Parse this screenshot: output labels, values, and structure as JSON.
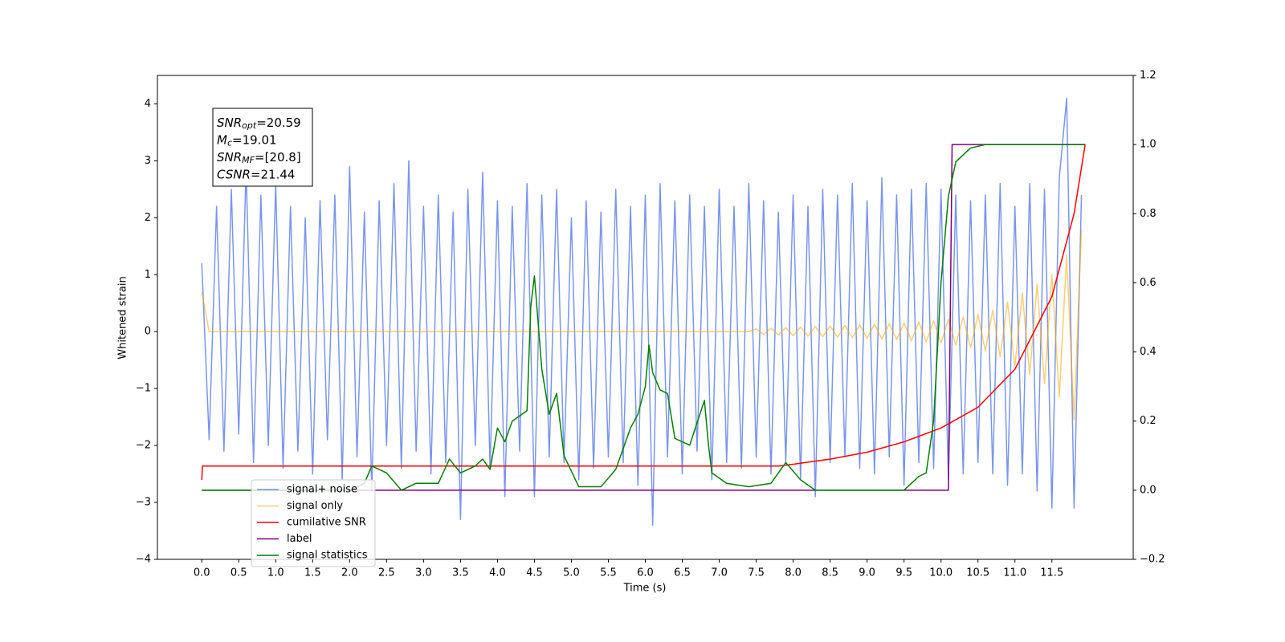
{
  "chart_data": {
    "type": "line",
    "xlabel": "Time (s)",
    "ylabel": "Whitened strain",
    "xlim": [
      -0.6,
      12.6
    ],
    "ylim": [
      -4,
      4.5
    ],
    "y2lim": [
      -0.2,
      1.2
    ],
    "xticks": [
      {
        "value": 0,
        "label": "0.0"
      },
      0.5,
      {
        "value": 1,
        "label": "1.0"
      },
      1.5,
      {
        "value": 2,
        "label": "2.0"
      },
      2.5,
      {
        "value": 3,
        "label": "3.0"
      },
      3.5,
      {
        "value": 4,
        "label": "4.0"
      },
      4.5,
      {
        "value": 5,
        "label": "5.0"
      },
      5.5,
      {
        "value": 6,
        "label": "6.0"
      },
      6.5,
      {
        "value": 7,
        "label": "7.0"
      },
      7.5,
      {
        "value": 8,
        "label": "8.0"
      },
      8.5,
      {
        "value": 9,
        "label": "9.0"
      },
      9.5,
      {
        "value": 10,
        "label": "10.0"
      },
      10.5,
      {
        "value": 11,
        "label": "11.0"
      },
      11.5
    ],
    "yticks": [
      {
        "value": -4,
        "label": "−4"
      },
      {
        "value": -3,
        "label": "−3"
      },
      {
        "value": -2,
        "label": "−2"
      },
      {
        "value": -1,
        "label": "−1"
      },
      0,
      1,
      2,
      3,
      4
    ],
    "y2ticks": [
      {
        "value": -0.2,
        "label": "−0.2"
      },
      {
        "value": 0,
        "label": "0.0"
      },
      0.2,
      0.4,
      0.6,
      0.8,
      {
        "value": 1,
        "label": "1.0"
      },
      1.2
    ],
    "annotation": [
      {
        "main": "SNR",
        "sub": "opt",
        "value": "=20.59"
      },
      {
        "main": "M",
        "sub": "c",
        "value": "=19.01"
      },
      {
        "main": "SNR",
        "sub": "MF",
        "value": "=[20.8]"
      },
      {
        "main": "CSNR",
        "value": "=21.44"
      }
    ],
    "x": [
      0.0,
      0.1,
      0.2,
      0.3,
      0.4,
      0.5,
      0.6,
      0.7,
      0.8,
      0.9,
      1.0,
      1.1,
      1.2,
      1.3,
      1.4,
      1.5,
      1.6,
      1.7,
      1.8,
      1.9,
      2.0,
      2.1,
      2.2,
      2.3,
      2.4,
      2.5,
      2.6,
      2.7,
      2.8,
      2.9,
      3.0,
      3.1,
      3.2,
      3.3,
      3.4,
      3.5,
      3.6,
      3.7,
      3.8,
      3.9,
      4.0,
      4.1,
      4.2,
      4.3,
      4.4,
      4.5,
      4.6,
      4.7,
      4.8,
      4.9,
      5.0,
      5.1,
      5.2,
      5.3,
      5.4,
      5.5,
      5.6,
      5.7,
      5.8,
      5.9,
      6.0,
      6.1,
      6.2,
      6.3,
      6.4,
      6.5,
      6.6,
      6.7,
      6.8,
      6.9,
      7.0,
      7.1,
      7.2,
      7.3,
      7.4,
      7.5,
      7.6,
      7.7,
      7.8,
      7.9,
      8.0,
      8.1,
      8.2,
      8.3,
      8.4,
      8.5,
      8.6,
      8.7,
      8.8,
      8.9,
      9.0,
      9.1,
      9.2,
      9.3,
      9.4,
      9.5,
      9.6,
      9.7,
      9.8,
      9.9,
      10.0,
      10.1,
      10.2,
      10.3,
      10.4,
      10.5,
      10.6,
      10.7,
      10.8,
      10.9,
      11.0,
      11.1,
      11.2,
      11.3,
      11.4,
      11.5,
      11.6,
      11.7,
      11.8,
      11.9
    ],
    "series": [
      {
        "name": "signal+ noise",
        "color": "#4169e1",
        "values": [
          1.2,
          -1.9,
          2.2,
          -2.1,
          2.5,
          -1.8,
          2.9,
          -2.3,
          2.4,
          -2.0,
          2.6,
          -2.4,
          2.2,
          -2.1,
          2.0,
          -2.5,
          2.3,
          -1.9,
          2.4,
          -2.6,
          2.9,
          -2.2,
          2.1,
          -2.8,
          2.3,
          -2.0,
          2.6,
          -2.4,
          3.0,
          -2.1,
          2.2,
          -2.5,
          2.4,
          -2.3,
          2.1,
          -3.3,
          2.5,
          -2.0,
          2.8,
          -2.4,
          2.3,
          -2.9,
          2.2,
          -2.1,
          2.6,
          -2.9,
          2.4,
          -2.2,
          2.5,
          -2.3,
          2.0,
          -2.6,
          2.3,
          -2.4,
          2.1,
          -2.2,
          2.5,
          -2.3,
          2.2,
          -2.7,
          2.4,
          -3.4,
          2.6,
          -2.2,
          2.3,
          -2.5,
          2.4,
          -2.1,
          2.2,
          -2.6,
          2.5,
          -2.3,
          2.2,
          -2.4,
          2.6,
          -2.2,
          2.3,
          -2.5,
          2.1,
          -2.3,
          2.4,
          -2.6,
          2.2,
          -2.9,
          2.5,
          -2.3,
          2.4,
          -2.2,
          2.6,
          -2.4,
          2.3,
          -2.5,
          2.7,
          -2.2,
          2.4,
          -2.7,
          2.5,
          -2.3,
          2.6,
          -2.4,
          2.5,
          -2.6,
          2.4,
          -2.5,
          2.3,
          -2.3,
          2.4,
          -2.5,
          2.6,
          -2.7,
          2.2,
          -2.5,
          2.6,
          -2.8,
          2.5,
          -3.1,
          2.7,
          4.1,
          -3.1,
          2.4
        ]
      },
      {
        "name": "signal only",
        "color": "#ffa500",
        "values": [
          0.7,
          0,
          0,
          0,
          0,
          0,
          0,
          0,
          0,
          0,
          0,
          0,
          0,
          0,
          0,
          0,
          0,
          0,
          0,
          0,
          0,
          0,
          0,
          0,
          0,
          0,
          0,
          0,
          0,
          0,
          0,
          0,
          0,
          0,
          0,
          0,
          0,
          0,
          0,
          0,
          0,
          0,
          0,
          0,
          0,
          0,
          0,
          0,
          0,
          0,
          0,
          0,
          0,
          0,
          0,
          0,
          0,
          0,
          0,
          0,
          0,
          0,
          0,
          0,
          0,
          0,
          0,
          0,
          0,
          0,
          0,
          0,
          0,
          0,
          0,
          0.05,
          -0.05,
          0.06,
          -0.06,
          0.07,
          -0.07,
          0.08,
          -0.08,
          0.09,
          -0.09,
          0.1,
          -0.1,
          0.11,
          -0.11,
          0.12,
          -0.12,
          0.13,
          -0.13,
          0.14,
          -0.14,
          0.15,
          -0.16,
          0.17,
          -0.18,
          0.19,
          -0.2,
          0.22,
          -0.24,
          0.26,
          -0.28,
          0.3,
          -0.34,
          0.38,
          -0.44,
          0.52,
          -0.6,
          0.68,
          -0.76,
          0.84,
          -0.92,
          1.0,
          -1.15,
          1.35,
          -1.55,
          1.8
        ]
      },
      {
        "name": "cumilative SNR",
        "color": "#ff0000",
        "axis": "y2",
        "x": [
          0,
          0.01,
          7.8,
          8.0,
          8.5,
          9.0,
          9.5,
          10.0,
          10.5,
          11.0,
          11.5,
          11.8,
          11.95
        ],
        "values": [
          0.03,
          0.07,
          0.07,
          0.075,
          0.09,
          0.11,
          0.14,
          0.18,
          0.24,
          0.35,
          0.56,
          0.8,
          1.0
        ]
      },
      {
        "name": "label",
        "color": "#800080",
        "axis": "y2",
        "x": [
          0,
          10.1,
          10.15,
          11.95
        ],
        "values": [
          0,
          0,
          1,
          1
        ]
      },
      {
        "name": "signal statistics",
        "color": "#008000",
        "axis": "y2",
        "x": [
          0,
          2.0,
          2.2,
          2.3,
          2.5,
          2.7,
          2.9,
          3.2,
          3.35,
          3.5,
          3.7,
          3.8,
          3.9,
          4.0,
          4.1,
          4.2,
          4.4,
          4.45,
          4.5,
          4.6,
          4.7,
          4.8,
          4.9,
          5.1,
          5.4,
          5.6,
          5.8,
          5.9,
          6.0,
          6.05,
          6.1,
          6.2,
          6.3,
          6.4,
          6.6,
          6.8,
          6.85,
          6.9,
          7.1,
          7.4,
          7.7,
          7.9,
          8.1,
          8.3,
          9.5,
          9.7,
          9.8,
          9.9,
          10.0,
          10.1,
          10.2,
          10.4,
          10.6,
          11.95
        ],
        "values": [
          0,
          0,
          0.02,
          0.07,
          0.05,
          0.0,
          0.02,
          0.02,
          0.09,
          0.05,
          0.07,
          0.09,
          0.06,
          0.18,
          0.14,
          0.2,
          0.23,
          0.53,
          0.62,
          0.35,
          0.22,
          0.28,
          0.1,
          0.01,
          0.01,
          0.06,
          0.18,
          0.22,
          0.3,
          0.42,
          0.34,
          0.29,
          0.28,
          0.15,
          0.13,
          0.26,
          0.14,
          0.05,
          0.02,
          0.01,
          0.02,
          0.08,
          0.03,
          0.0,
          0.0,
          0.04,
          0.05,
          0.2,
          0.6,
          0.85,
          0.95,
          0.99,
          1.0,
          1.0
        ]
      }
    ]
  }
}
